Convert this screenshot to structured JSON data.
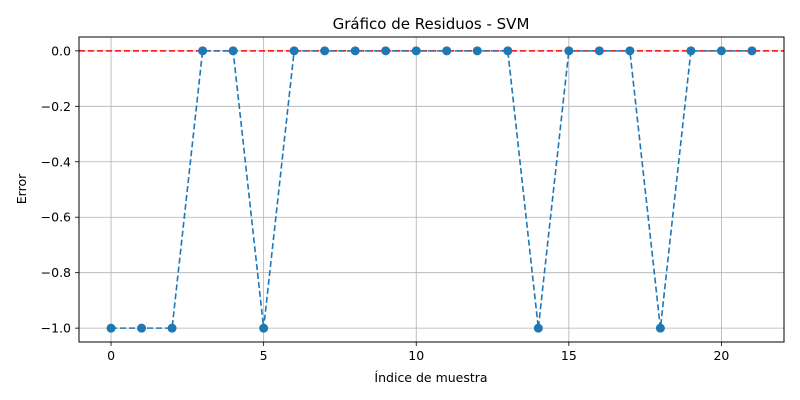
{
  "chart_data": {
    "type": "line",
    "title": "Gráfico de Residuos - SVM",
    "xlabel": "Índice de muestra",
    "ylabel": "Error",
    "x": [
      0,
      1,
      2,
      3,
      4,
      5,
      6,
      7,
      8,
      9,
      10,
      11,
      12,
      13,
      14,
      15,
      16,
      17,
      18,
      19,
      20,
      21
    ],
    "series": [
      {
        "values": [
          -1,
          -1,
          -1,
          0,
          0,
          -1,
          0,
          0,
          0,
          0,
          0,
          0,
          0,
          0,
          -1,
          0,
          0,
          0,
          -1,
          0,
          0,
          0
        ],
        "color": "#1f77b4",
        "line_style": "dashed",
        "marker": "circle"
      }
    ],
    "reference_line": {
      "y": 0,
      "color": "#ff0000",
      "line_style": "dashed"
    },
    "xlim": [
      -1.05,
      22.05
    ],
    "ylim": [
      -1.05,
      0.05
    ],
    "xticks": [
      0,
      5,
      10,
      15,
      20
    ],
    "xtick_labels": [
      "0",
      "5",
      "10",
      "15",
      "20"
    ],
    "yticks": [
      0.0,
      -0.2,
      -0.4,
      -0.6,
      -0.8,
      -1.0
    ],
    "ytick_labels": [
      "0.0",
      "−0.2",
      "−0.4",
      "−0.6",
      "−0.8",
      "−1.0"
    ],
    "grid": true
  }
}
